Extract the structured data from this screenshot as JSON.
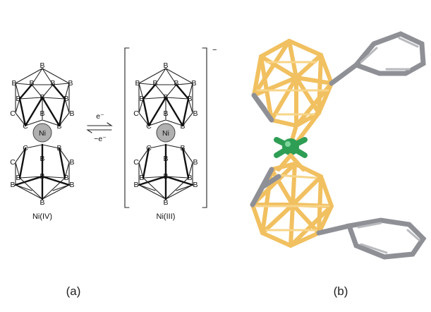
{
  "panel_a": {
    "caption": "(a)",
    "left_label": "Ni(IV)",
    "right_label": "Ni(III)",
    "charge": "−",
    "arrow_forward": "e⁻",
    "arrow_reverse": "−e⁻",
    "metal": "Ni",
    "boron": "B",
    "carbon": "C"
  },
  "panel_b": {
    "caption": "(b)",
    "colors": {
      "boron": "#f1c060",
      "carbon": "#8e9096",
      "nickel": "#2e9e55"
    }
  }
}
